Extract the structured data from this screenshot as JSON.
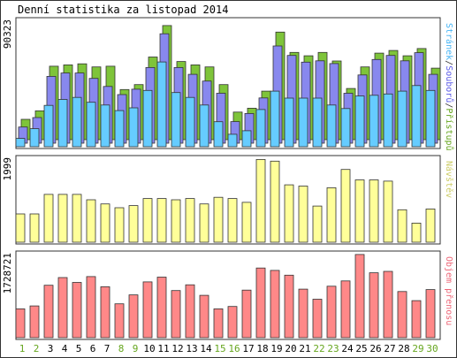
{
  "chart_data": {
    "type": "bar",
    "title": "Denní statistika za listopad 2014",
    "categories": [
      "1",
      "2",
      "3",
      "4",
      "5",
      "6",
      "7",
      "8",
      "9",
      "10",
      "11",
      "12",
      "13",
      "14",
      "15",
      "16",
      "17",
      "18",
      "19",
      "20",
      "21",
      "22",
      "23",
      "24",
      "25",
      "26",
      "27",
      "28",
      "29",
      "30"
    ],
    "weekend_days": [
      "1",
      "2",
      "8",
      "9",
      "15",
      "16",
      "22",
      "23",
      "29",
      "30"
    ],
    "colors": {
      "weekday_label": "#000000",
      "weekend_label": "#66a61e"
    },
    "panels": [
      {
        "id": "visits",
        "max_label": "90323",
        "legend": [
          {
            "text": "Stránek",
            "color": "#47b5f5"
          },
          {
            "text": "/",
            "color": "#333333"
          },
          {
            "text": "Souborů",
            "color": "#5b5be8"
          },
          {
            "text": "/",
            "color": "#333333"
          },
          {
            "text": "Přístupů",
            "color": "#66a61e"
          }
        ],
        "ymax": 90323,
        "series": [
          {
            "name": "Přístupů",
            "color": "#7ec43a",
            "values": [
              15500,
              22000,
              56000,
              57000,
              57800,
              55500,
              56000,
              38200,
              42000,
              63000,
              87000,
              59600,
              57000,
              55500,
              42000,
              21000,
              24000,
              37000,
              82000,
              66500,
              64000,
              66500,
              60000,
              39000,
              55500,
              66000,
              68000,
              64000,
              69500,
              54500
            ]
          },
          {
            "name": "Souborů",
            "color": "#8888ee",
            "values": [
              12000,
              19000,
              49500,
              52000,
              52000,
              48000,
              42000,
              36000,
              40000,
              56000,
              81000,
              56000,
              51000,
              46000,
              37000,
              16000,
              22000,
              33500,
              72000,
              65000,
              60000,
              61000,
              59000,
              37000,
              50500,
              62000,
              65000,
              61000,
              67000,
              51000
            ]
          },
          {
            "name": "Stránek",
            "color": "#66ccff",
            "values": [
              6000,
              13000,
              29800,
              34000,
              35500,
              32000,
              30000,
              26000,
              28000,
              40500,
              61000,
              39000,
              35500,
              30000,
              18000,
              9000,
              11500,
              26800,
              40000,
              35000,
              35000,
              35000,
              30000,
              27500,
              36500,
              37000,
              38000,
              40000,
              44000,
              40500
            ]
          }
        ]
      },
      {
        "id": "hosts",
        "max_label": "1999",
        "legend": [
          {
            "text": "Návštěv",
            "color": "#cccc66"
          }
        ],
        "ymax": 1999,
        "series": [
          {
            "name": "Návštěv",
            "color": "#ffff99",
            "values": [
              680,
              680,
              1150,
              1150,
              1150,
              1020,
              920,
              830,
              880,
              1050,
              1050,
              1020,
              1050,
              920,
              1080,
              1050,
              960,
              1990,
              1950,
              1380,
              1350,
              870,
              1310,
              1750,
              1500,
              1500,
              1470,
              780,
              460,
              800
            ]
          }
        ]
      },
      {
        "id": "bandwidth",
        "max_label": "1728721",
        "legend": [
          {
            "text": "Objem přenosu",
            "color": "#ee6677"
          }
        ],
        "ymax": 1728721,
        "series": [
          {
            "name": "Objem přenosu",
            "color": "#ff8888",
            "values": [
              600000,
              660000,
              1090000,
              1250000,
              1150000,
              1270000,
              1060000,
              705000,
              890000,
              1160000,
              1260000,
              980000,
              1100000,
              880000,
              600000,
              650000,
              990000,
              1450000,
              1400000,
              1300000,
              1010000,
              800000,
              1070000,
              1180000,
              1730000,
              1350000,
              1380000,
              960000,
              770000,
              1000000
            ]
          }
        ]
      }
    ]
  }
}
